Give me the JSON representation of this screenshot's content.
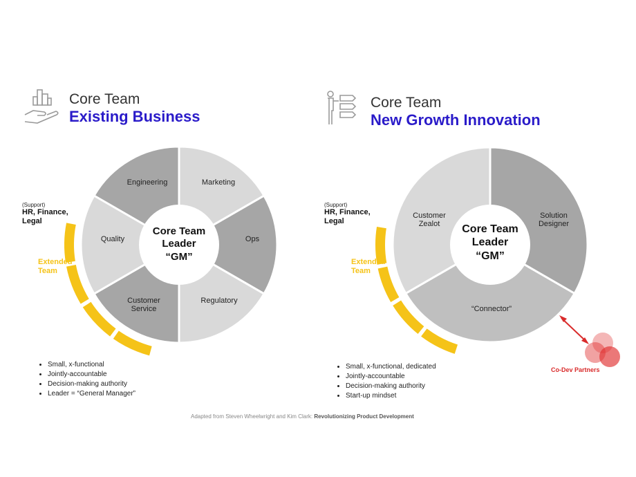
{
  "left": {
    "title_sub": "Core Team",
    "title_main": "Existing Business",
    "support_small": "(Support)",
    "support_main": "HR, Finance, Legal",
    "extended_team": "Extended Team",
    "center": [
      "Core Team",
      "Leader",
      "“GM”"
    ],
    "segments": [
      {
        "label": "Engineering"
      },
      {
        "label": "Marketing"
      },
      {
        "label": "Ops"
      },
      {
        "label": "Regulatory"
      },
      {
        "label": "Customer Service"
      },
      {
        "label": "Quality"
      }
    ],
    "bullets": [
      "Small, x-functional",
      "Jointly-accountable",
      "Decision-making authority",
      "Leader = “General Manager”"
    ]
  },
  "right": {
    "title_sub": "Core Team",
    "title_main": "New Growth Innovation",
    "support_small": "(Support)",
    "support_main": "HR, Finance, Legal",
    "extended_team": "Extended Team",
    "center": [
      "Core Team",
      "Leader",
      "“GM”"
    ],
    "segments": [
      {
        "label": "Customer Zealot"
      },
      {
        "label": "Solution Designer"
      },
      {
        "label": "“Connector”"
      }
    ],
    "bullets": [
      "Small, x-functional, dedicated",
      "Jointly-accountable",
      "Decision-making authority",
      "Start-up mindset"
    ],
    "codev_label": "Co-Dev Partners"
  },
  "footer": {
    "prefix": "Adapted from Steven Wheelwright and Kim Clark: ",
    "bold": "Revolutionizing Product Development"
  },
  "colors": {
    "title_blue": "#2a1bc9",
    "segment_dark": "#a6a6a6",
    "segment_light": "#d9d9d9",
    "segment_mid": "#bfbfbf",
    "extended_yellow": "#f5c318",
    "codev_red": "#e03030"
  }
}
